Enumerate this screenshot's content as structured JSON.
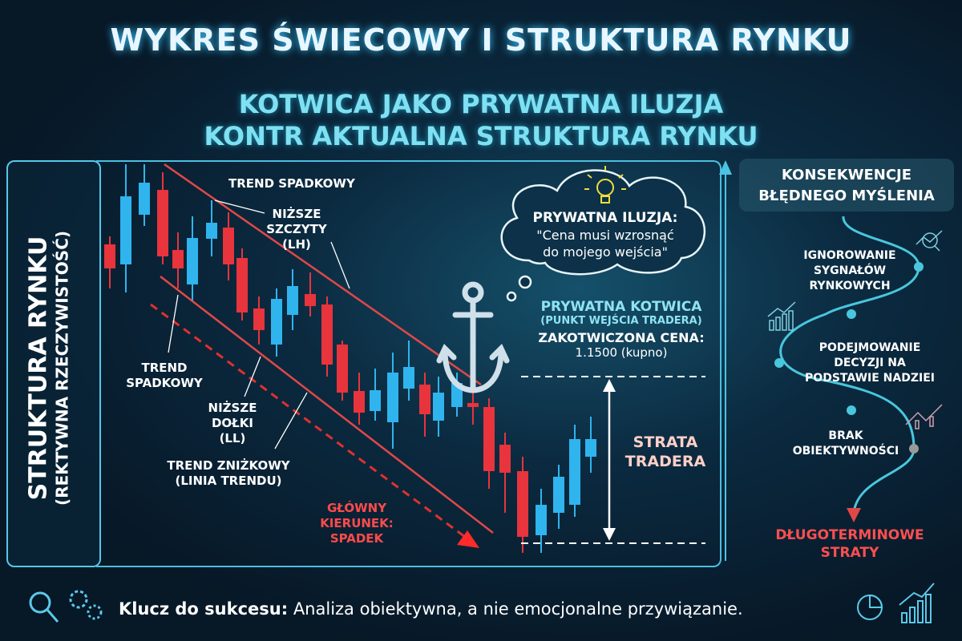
{
  "title": "WYKRES ŚWIECOWY I STRUKTURA RYNKU",
  "subtitle": {
    "line1": "KOTWICA JAKO PRYWATNA ILUZJA",
    "line2": "KONTR AKTUALNA STRUKTURA RYNKU"
  },
  "side": {
    "title": "STRUKTURA RYNKU",
    "subtitle": "(REKTYWNA RZECZYWISTOŚĆ)"
  },
  "chart": {
    "trend_top": "TREND SPADKOWY",
    "lower_highs": [
      "NIŻSZE",
      "SZCZYTY",
      "(LH)"
    ],
    "trend_left": [
      "TREND",
      "SPADKOWY"
    ],
    "lower_lows": [
      "NIŻSZE",
      "DOŁKI",
      "(LL)"
    ],
    "trendline": [
      "TREND ZNIŻKOWY",
      "(LINIA TRENDU)"
    ],
    "main_direction": [
      "GŁÓWNY",
      "KIERUNEK:",
      "SPADEK"
    ],
    "colors": {
      "bearish": "#e8343c",
      "bullish": "#2fb4ee",
      "trendline": "#e04848"
    }
  },
  "cloud": {
    "heading": "PRYWATNA ILUZJA:",
    "quote1": "\"Cena musi wzrosnąć",
    "quote2": "do mojego wejścia\"",
    "icon": "lightbulb-icon"
  },
  "anchor": {
    "title": "PRYWATNA KOTWICA",
    "subtitle": "(PUNKT WEJŚCIA TRADERA)",
    "price_label": "ZAKOTWICZONA CENA:",
    "price": "1.1500 (kupno)",
    "icon": "anchor-icon"
  },
  "loss": [
    "STRATA",
    "TRADERA"
  ],
  "consequences": {
    "title1": "KONSEKWENCJE",
    "title2": "BŁĘDNEGO MYŚLENIA",
    "steps": [
      [
        "IGNOROWANIE",
        "SYGNAŁÓW",
        "RYNKOWYCH"
      ],
      [
        "PODEJMOWANIE",
        "DECYZJI NA",
        "PODSTAWIE NADZIEI"
      ],
      [
        "BRAK",
        "OBIEKTYWNOŚCI"
      ]
    ],
    "result": [
      "DŁUGOTERMINOWE",
      "STRATY"
    ]
  },
  "footer": {
    "bold": "Klucz do sukcesu:",
    "text": " Analiza obiektywna, a nie emocjonalne przywiązanie."
  }
}
